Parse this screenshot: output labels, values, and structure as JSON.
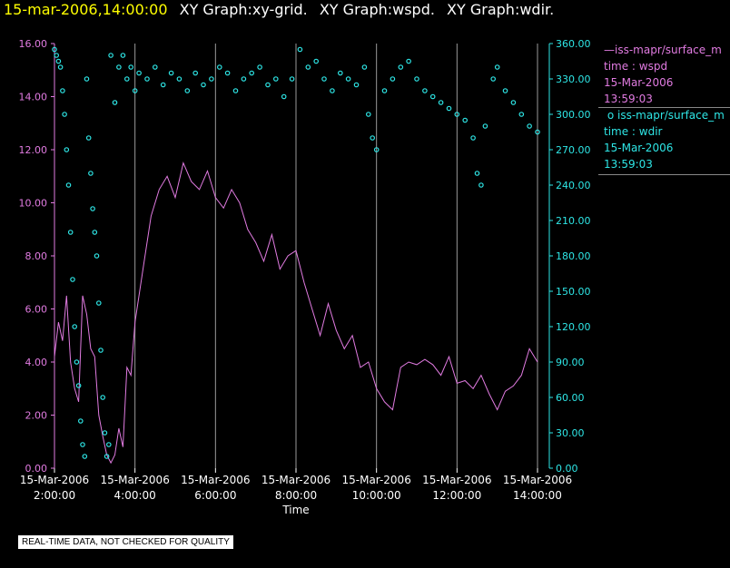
{
  "title": {
    "timestamp": "15-mar-2006,14:00:00",
    "graphs": [
      "XY Graph:xy-grid.",
      "XY Graph:wspd.",
      "XY Graph:wdir."
    ]
  },
  "legend": {
    "wspd": {
      "series": "iss-mapr/surface_m",
      "variable": "time : wspd",
      "date": "15-Mar-2006",
      "time": "13:59:03",
      "color": "#e17be1"
    },
    "wdir": {
      "series": "iss-mapr/surface_m",
      "variable": "time : wdir",
      "date": "15-Mar-2006",
      "time": "13:59:03",
      "color": "#2ee6e6"
    }
  },
  "disclaimer": "REAL-TIME DATA, NOT CHECKED FOR QUALITY",
  "chart_data": {
    "type": "line",
    "xlabel": "Time",
    "x_range_hours": [
      2.0,
      14.0
    ],
    "x_ticks": [
      {
        "date": "15-Mar-2006",
        "time": "2:00:00",
        "hour": 2
      },
      {
        "date": "15-Mar-2006",
        "time": "4:00:00",
        "hour": 4
      },
      {
        "date": "15-Mar-2006",
        "time": "6:00:00",
        "hour": 6
      },
      {
        "date": "15-Mar-2006",
        "time": "8:00:00",
        "hour": 8
      },
      {
        "date": "15-Mar-2006",
        "time": "10:00:00",
        "hour": 10
      },
      {
        "date": "15-Mar-2006",
        "time": "12:00:00",
        "hour": 12
      },
      {
        "date": "15-Mar-2006",
        "time": "14:00:00",
        "hour": 14
      }
    ],
    "grid": true,
    "y_left": {
      "range": [
        0,
        16
      ],
      "ticks": [
        "0.00",
        "2.00",
        "4.00",
        "6.00",
        "8.00",
        "10.00",
        "12.00",
        "14.00",
        "16.00"
      ],
      "color": "#e17be1"
    },
    "y_right": {
      "range": [
        0,
        360
      ],
      "ticks": [
        "0.00",
        "30.00",
        "60.00",
        "90.00",
        "120.00",
        "150.00",
        "180.00",
        "210.00",
        "240.00",
        "270.00",
        "300.00",
        "330.00",
        "360.00"
      ],
      "color": "#2ee6e6"
    },
    "series": [
      {
        "name": "wspd",
        "axis": "left",
        "style": "line",
        "color": "#e17be1",
        "x": [
          2.0,
          2.1,
          2.2,
          2.3,
          2.4,
          2.5,
          2.6,
          2.7,
          2.8,
          2.9,
          3.0,
          3.1,
          3.2,
          3.3,
          3.4,
          3.5,
          3.6,
          3.7,
          3.8,
          3.9,
          4.0,
          4.2,
          4.4,
          4.6,
          4.8,
          5.0,
          5.2,
          5.4,
          5.6,
          5.8,
          6.0,
          6.2,
          6.4,
          6.6,
          6.8,
          7.0,
          7.2,
          7.4,
          7.6,
          7.8,
          8.0,
          8.2,
          8.4,
          8.6,
          8.8,
          9.0,
          9.2,
          9.4,
          9.6,
          9.8,
          10.0,
          10.2,
          10.4,
          10.5,
          10.6,
          10.8,
          11.0,
          11.2,
          11.4,
          11.6,
          11.8,
          12.0,
          12.2,
          12.4,
          12.6,
          12.8,
          13.0,
          13.2,
          13.4,
          13.6,
          13.8,
          14.0
        ],
        "values": [
          4.2,
          5.5,
          4.8,
          6.5,
          4.0,
          3.0,
          2.5,
          6.5,
          5.8,
          4.5,
          4.2,
          2.0,
          1.2,
          0.5,
          0.2,
          0.5,
          1.5,
          0.8,
          3.8,
          3.5,
          5.5,
          7.5,
          9.5,
          10.5,
          11.0,
          10.2,
          11.5,
          10.8,
          10.5,
          11.2,
          10.2,
          9.8,
          10.5,
          10.0,
          9.0,
          8.5,
          7.8,
          8.8,
          7.5,
          8.0,
          8.2,
          7.0,
          6.0,
          5.0,
          6.2,
          5.2,
          4.5,
          5.0,
          3.8,
          4.0,
          3.0,
          2.5,
          2.2,
          3.0,
          3.8,
          4.0,
          3.9,
          4.1,
          3.9,
          3.5,
          4.2,
          3.2,
          3.3,
          3.0,
          3.5,
          2.8,
          2.2,
          2.9,
          3.1,
          3.5,
          4.5,
          4.0
        ]
      },
      {
        "name": "wdir",
        "axis": "right",
        "style": "points",
        "color": "#2ee6e6",
        "x": [
          2.0,
          2.05,
          2.1,
          2.15,
          2.2,
          2.25,
          2.3,
          2.35,
          2.4,
          2.45,
          2.5,
          2.55,
          2.6,
          2.65,
          2.7,
          2.75,
          2.8,
          2.85,
          2.9,
          2.95,
          3.0,
          3.05,
          3.1,
          3.15,
          3.2,
          3.25,
          3.3,
          3.35,
          3.4,
          3.5,
          3.6,
          3.7,
          3.8,
          3.9,
          4.0,
          4.1,
          4.3,
          4.5,
          4.7,
          4.9,
          5.1,
          5.3,
          5.5,
          5.7,
          5.9,
          6.1,
          6.3,
          6.5,
          6.7,
          6.9,
          7.1,
          7.3,
          7.5,
          7.7,
          7.9,
          8.1,
          8.3,
          8.5,
          8.7,
          8.9,
          9.1,
          9.3,
          9.5,
          9.7,
          9.8,
          9.9,
          10.0,
          10.2,
          10.4,
          10.6,
          10.8,
          11.0,
          11.2,
          11.4,
          11.6,
          11.8,
          12.0,
          12.2,
          12.4,
          12.5,
          12.6,
          12.7,
          12.9,
          13.0,
          13.2,
          13.4,
          13.6,
          13.8,
          14.0
        ],
        "values": [
          355,
          350,
          345,
          340,
          320,
          300,
          270,
          240,
          200,
          160,
          120,
          90,
          70,
          40,
          20,
          10,
          330,
          280,
          250,
          220,
          200,
          180,
          140,
          100,
          60,
          30,
          10,
          20,
          350,
          310,
          340,
          350,
          330,
          340,
          320,
          335,
          330,
          340,
          325,
          335,
          330,
          320,
          335,
          325,
          330,
          340,
          335,
          320,
          330,
          335,
          340,
          325,
          330,
          315,
          330,
          355,
          340,
          345,
          330,
          320,
          335,
          330,
          325,
          340,
          300,
          280,
          270,
          320,
          330,
          340,
          345,
          330,
          320,
          315,
          310,
          305,
          300,
          295,
          280,
          250,
          240,
          290,
          330,
          340,
          320,
          310,
          300,
          290,
          285
        ]
      }
    ]
  }
}
